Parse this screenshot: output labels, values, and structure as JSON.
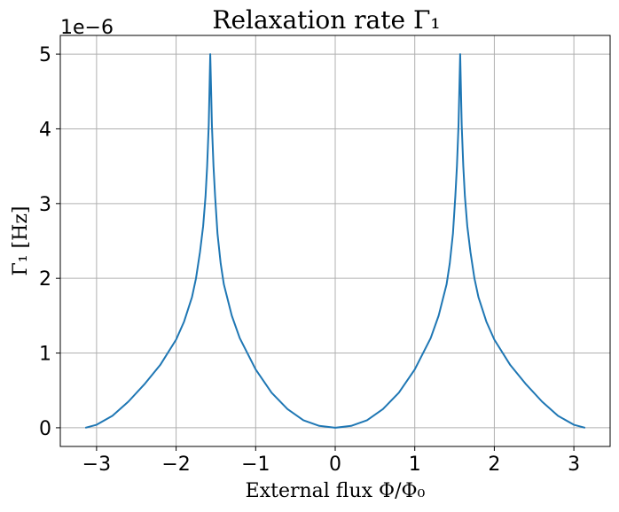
{
  "chart_data": {
    "type": "line",
    "title": "Relaxation rate Γ₁",
    "xlabel": "External flux Φ/Φ₀",
    "ylabel": "Γ₁ [Hz]",
    "y_offset_label": "1e−6",
    "xlim": [
      -3.4558,
      3.4558
    ],
    "ylim": [
      -0.25,
      5.25
    ],
    "xticks": [
      -3,
      -2,
      -1,
      0,
      1,
      2,
      3
    ],
    "xtick_labels": [
      "−3",
      "−2",
      "−1",
      "0",
      "1",
      "2",
      "3"
    ],
    "yticks": [
      0,
      1,
      2,
      3,
      4,
      5
    ],
    "ytick_labels": [
      "0",
      "1",
      "2",
      "3",
      "4",
      "5"
    ],
    "grid": true,
    "series_color": "#1f77b4",
    "grid_color": "#b0b0b0",
    "series": [
      {
        "x": [
          -3.1416,
          -3.0,
          -2.8,
          -2.6,
          -2.4,
          -2.2,
          -2.0,
          -1.9,
          -1.8,
          -1.75,
          -1.7,
          -1.66,
          -1.63,
          -1.61,
          -1.59,
          -1.5708,
          -1.55,
          -1.53,
          -1.51,
          -1.48,
          -1.44,
          -1.4,
          -1.3,
          -1.2,
          -1.0,
          -0.8,
          -0.6,
          -0.4,
          -0.2,
          0.0,
          0.2,
          0.4,
          0.6,
          0.8,
          1.0,
          1.2,
          1.3,
          1.4,
          1.44,
          1.48,
          1.51,
          1.53,
          1.55,
          1.5708,
          1.59,
          1.61,
          1.63,
          1.66,
          1.7,
          1.75,
          1.8,
          1.9,
          2.0,
          2.2,
          2.4,
          2.6,
          2.8,
          3.0,
          3.1416
        ],
        "y": [
          0.0,
          0.04,
          0.16,
          0.35,
          0.58,
          0.84,
          1.18,
          1.42,
          1.75,
          2.0,
          2.35,
          2.7,
          3.1,
          3.5,
          4.05,
          5.0,
          4.05,
          3.5,
          3.1,
          2.6,
          2.2,
          1.92,
          1.5,
          1.2,
          0.78,
          0.47,
          0.25,
          0.1,
          0.025,
          0.0,
          0.025,
          0.1,
          0.25,
          0.47,
          0.78,
          1.2,
          1.5,
          1.92,
          2.2,
          2.6,
          3.1,
          3.5,
          4.05,
          5.0,
          4.05,
          3.5,
          3.1,
          2.7,
          2.35,
          2.0,
          1.75,
          1.42,
          1.18,
          0.84,
          0.58,
          0.35,
          0.16,
          0.04,
          0.0
        ]
      }
    ]
  }
}
